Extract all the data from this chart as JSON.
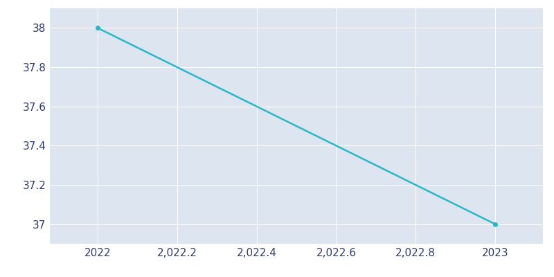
{
  "x": [
    2022,
    2023
  ],
  "y": [
    38,
    37
  ],
  "line_color": "#29b8c8",
  "background_color": "#ffffff",
  "plot_bg_color": "#dce5f0",
  "grid_color": "#ffffff",
  "tick_color": "#2d3d6b",
  "ylim": [
    36.9,
    38.1
  ],
  "xlim": [
    2021.88,
    2023.12
  ],
  "yticks": [
    37.0,
    37.2,
    37.4,
    37.6,
    37.8,
    38.0
  ],
  "xticks": [
    2022,
    2022.2,
    2022.4,
    2022.6,
    2022.8,
    2023
  ],
  "xtick_labels": [
    "2022",
    "2,022.2",
    "2,022.4",
    "2,022.6",
    "2,022.8",
    "2023"
  ],
  "ytick_labels": [
    "37",
    "37.2",
    "37.4",
    "37.6",
    "37.8",
    "38"
  ],
  "line_width": 1.8,
  "marker": "o",
  "marker_size": 4,
  "marker_color": "#29b8c8",
  "tick_fontsize": 11
}
